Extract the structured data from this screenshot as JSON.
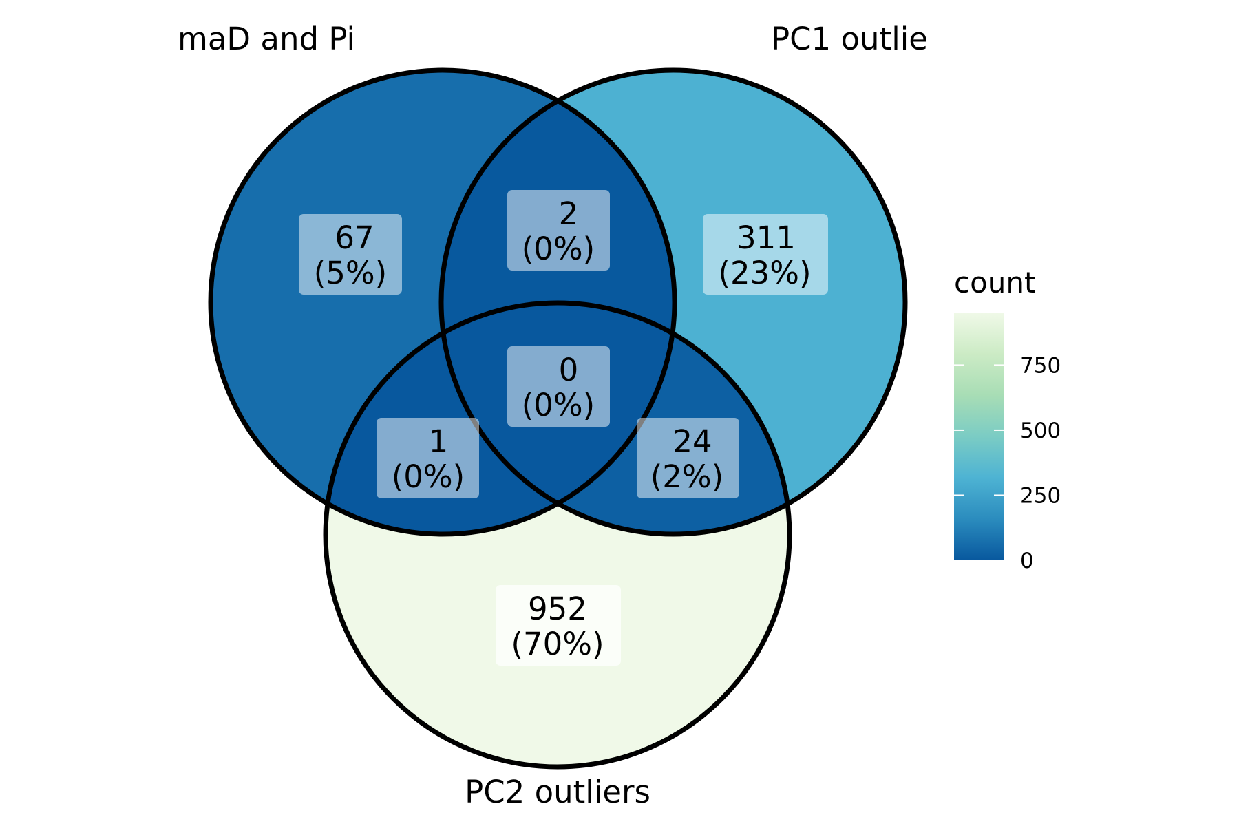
{
  "sets": [
    {
      "label": "maD and Pi",
      "count": 67,
      "pct": "(5%)"
    },
    {
      "label": "PC1 outlie",
      "count": 311,
      "pct": "(23%)"
    },
    {
      "label": "PC2 outliers",
      "count": 952,
      "pct": "(70%)"
    }
  ],
  "regions": {
    "only_a": {
      "count": "67",
      "pct": "(5%)",
      "value": 67
    },
    "only_b": {
      "count": "311",
      "pct": "(23%)",
      "value": 311
    },
    "only_c": {
      "count": "952",
      "pct": "(70%)",
      "value": 952
    },
    "ab": {
      "count": "2",
      "pct": "(0%)",
      "value": 2
    },
    "ac": {
      "count": "1",
      "pct": "(0%)",
      "value": 1
    },
    "bc": {
      "count": "24",
      "pct": "(2%)",
      "value": 24
    },
    "abc": {
      "count": "0",
      "pct": "(0%)",
      "value": 0
    }
  },
  "legend": {
    "title": "count",
    "ticks": [
      "0",
      "250",
      "500",
      "750"
    ],
    "tick_values": [
      0,
      250,
      500,
      750
    ],
    "range": [
      0,
      952
    ],
    "colors": [
      "#08589e",
      "#2b8cbe",
      "#4eb3d3",
      "#7bccc4",
      "#a8ddb5",
      "#ccebc5",
      "#f0f9e8"
    ]
  }
}
